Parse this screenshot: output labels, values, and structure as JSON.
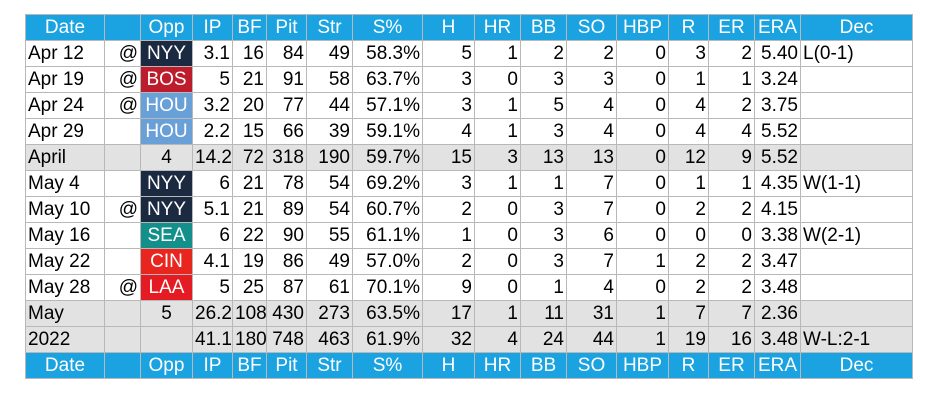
{
  "headers": [
    "Date",
    "",
    "Opp",
    "IP",
    "BF",
    "Pit",
    "Str",
    "S%",
    "H",
    "HR",
    "BB",
    "SO",
    "HBP",
    "R",
    "ER",
    "ERA",
    "Dec"
  ],
  "colors": {
    "header_bg": "#1aa3e0",
    "summary_bg": "#e2e2e2",
    "NYY": "#1b2a41",
    "BOS": "#bd1c2d",
    "HOU": "#6aa0d8",
    "SEA": "#13908b",
    "CIN": "#e8251f",
    "LAA": "#e51b24"
  },
  "rows": [
    {
      "type": "game",
      "date": "Apr 12",
      "at": "@",
      "opp": "NYY",
      "ip": "3.1",
      "bf": "16",
      "pit": "84",
      "str": "49",
      "spct": "58.3%",
      "h": "5",
      "hr": "1",
      "bb": "2",
      "so": "2",
      "hbp": "0",
      "r": "3",
      "er": "2",
      "era": "5.40",
      "dec": "L(0-1)"
    },
    {
      "type": "game",
      "date": "Apr 19",
      "at": "@",
      "opp": "BOS",
      "ip": "5",
      "bf": "21",
      "pit": "91",
      "str": "58",
      "spct": "63.7%",
      "h": "3",
      "hr": "0",
      "bb": "3",
      "so": "3",
      "hbp": "0",
      "r": "1",
      "er": "1",
      "era": "3.24",
      "dec": ""
    },
    {
      "type": "game",
      "date": "Apr 24",
      "at": "@",
      "opp": "HOU",
      "ip": "3.2",
      "bf": "20",
      "pit": "77",
      "str": "44",
      "spct": "57.1%",
      "h": "3",
      "hr": "1",
      "bb": "5",
      "so": "4",
      "hbp": "0",
      "r": "4",
      "er": "2",
      "era": "3.75",
      "dec": ""
    },
    {
      "type": "game",
      "date": "Apr 29",
      "at": "",
      "opp": "HOU",
      "ip": "2.2",
      "bf": "15",
      "pit": "66",
      "str": "39",
      "spct": "59.1%",
      "h": "4",
      "hr": "1",
      "bb": "3",
      "so": "4",
      "hbp": "0",
      "r": "4",
      "er": "4",
      "era": "5.52",
      "dec": ""
    },
    {
      "type": "sum",
      "date": "April",
      "at": "",
      "opp": "4",
      "ip": "14.2",
      "bf": "72",
      "pit": "318",
      "str": "190",
      "spct": "59.7%",
      "h": "15",
      "hr": "3",
      "bb": "13",
      "so": "13",
      "hbp": "0",
      "r": "12",
      "er": "9",
      "era": "5.52",
      "dec": ""
    },
    {
      "type": "game",
      "date": "May 4",
      "at": "",
      "opp": "NYY",
      "ip": "6",
      "bf": "21",
      "pit": "78",
      "str": "54",
      "spct": "69.2%",
      "h": "3",
      "hr": "1",
      "bb": "1",
      "so": "7",
      "hbp": "0",
      "r": "1",
      "er": "1",
      "era": "4.35",
      "dec": "W(1-1)"
    },
    {
      "type": "game",
      "date": "May 10",
      "at": "@",
      "opp": "NYY",
      "ip": "5.1",
      "bf": "21",
      "pit": "89",
      "str": "54",
      "spct": "60.7%",
      "h": "2",
      "hr": "0",
      "bb": "3",
      "so": "7",
      "hbp": "0",
      "r": "2",
      "er": "2",
      "era": "4.15",
      "dec": ""
    },
    {
      "type": "game",
      "date": "May 16",
      "at": "",
      "opp": "SEA",
      "ip": "6",
      "bf": "22",
      "pit": "90",
      "str": "55",
      "spct": "61.1%",
      "h": "1",
      "hr": "0",
      "bb": "3",
      "so": "6",
      "hbp": "0",
      "r": "0",
      "er": "0",
      "era": "3.38",
      "dec": "W(2-1)"
    },
    {
      "type": "game",
      "date": "May 22",
      "at": "",
      "opp": "CIN",
      "ip": "4.1",
      "bf": "19",
      "pit": "86",
      "str": "49",
      "spct": "57.0%",
      "h": "2",
      "hr": "0",
      "bb": "3",
      "so": "7",
      "hbp": "1",
      "r": "2",
      "er": "2",
      "era": "3.47",
      "dec": ""
    },
    {
      "type": "game",
      "date": "May 28",
      "at": "@",
      "opp": "LAA",
      "ip": "5",
      "bf": "25",
      "pit": "87",
      "str": "61",
      "spct": "70.1%",
      "h": "9",
      "hr": "0",
      "bb": "1",
      "so": "4",
      "hbp": "0",
      "r": "2",
      "er": "2",
      "era": "3.48",
      "dec": ""
    },
    {
      "type": "sum",
      "date": "May",
      "at": "",
      "opp": "5",
      "ip": "26.2",
      "bf": "108",
      "pit": "430",
      "str": "273",
      "spct": "63.5%",
      "h": "17",
      "hr": "1",
      "bb": "11",
      "so": "31",
      "hbp": "1",
      "r": "7",
      "er": "7",
      "era": "2.36",
      "dec": ""
    },
    {
      "type": "sum",
      "date": "2022",
      "at": "",
      "opp": "",
      "ip": "41.1",
      "bf": "180",
      "pit": "748",
      "str": "463",
      "spct": "61.9%",
      "h": "32",
      "hr": "4",
      "bb": "24",
      "so": "44",
      "hbp": "1",
      "r": "19",
      "er": "16",
      "era": "3.48",
      "dec": "W-L:2-1"
    }
  ]
}
